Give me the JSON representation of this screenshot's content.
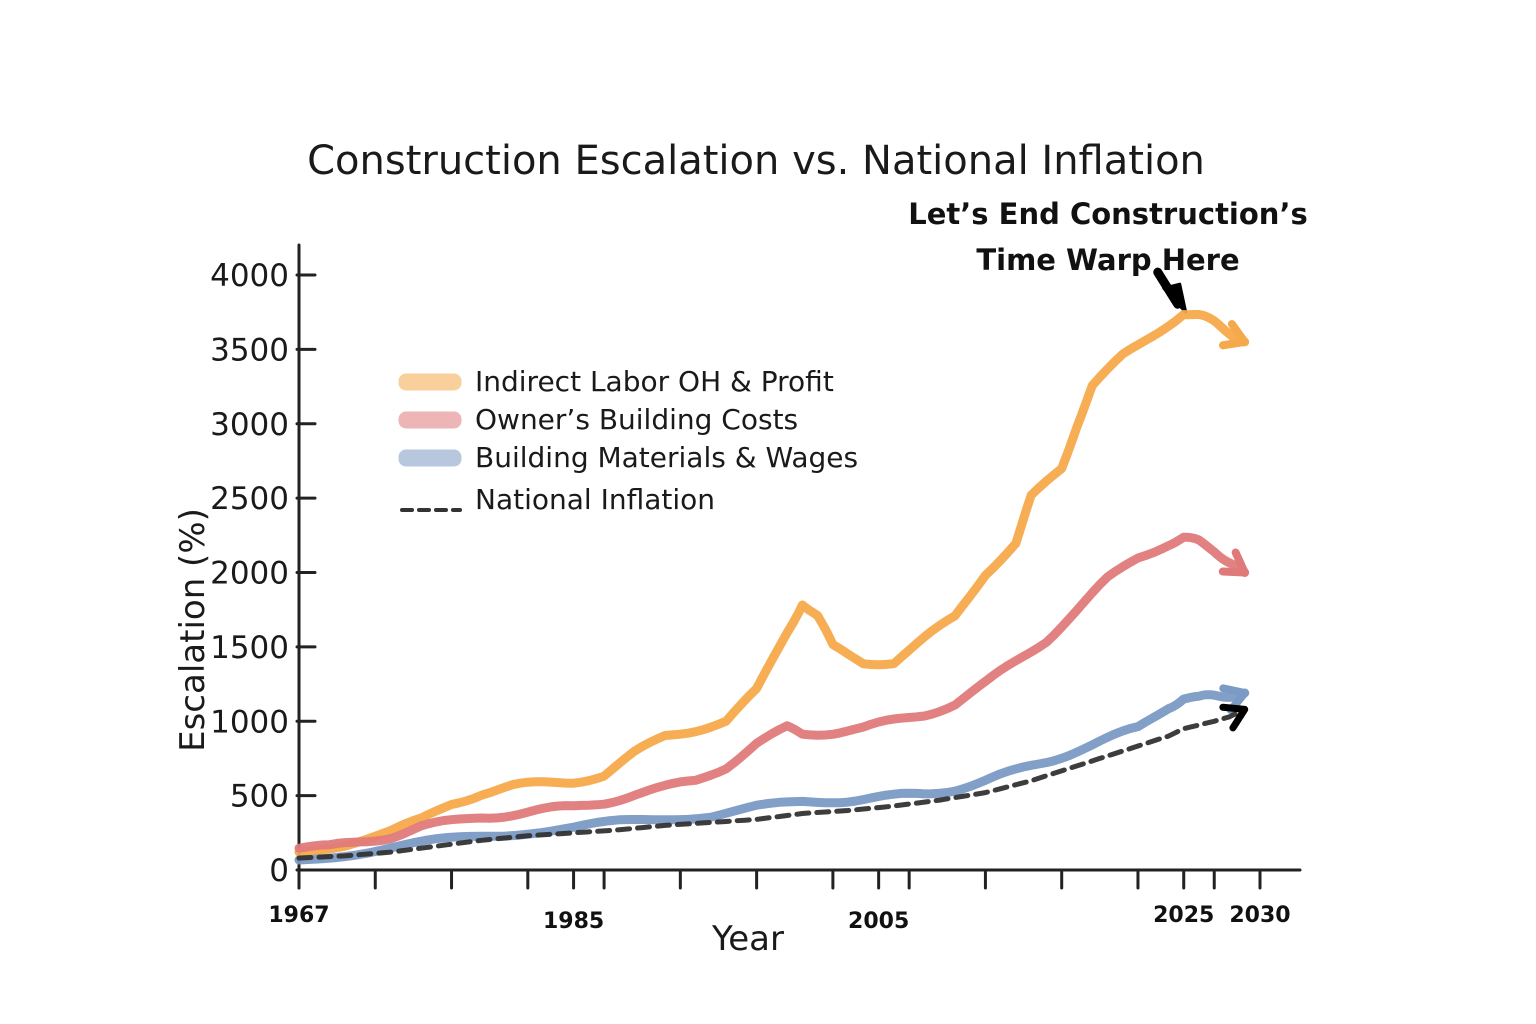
{
  "chart_data": {
    "type": "line",
    "title": "Construction Escalation vs. National Inflation",
    "annotation": "Let’s End Construction’s Time Warp Here",
    "annotation_lines": [
      "Let’s End Construction’s",
      "Time Warp Here"
    ],
    "annotation_x": 2025,
    "annotation_y": 3750,
    "xlabel": "Year",
    "ylabel": "Escalation (%)",
    "xlim": [
      1967,
      2030
    ],
    "ylim": [
      0,
      4000
    ],
    "x_ticks": [
      1967,
      1985,
      2005,
      2025,
      2030
    ],
    "y_ticks": [
      0,
      500,
      1000,
      1500,
      2000,
      2500,
      3000,
      3500,
      4000
    ],
    "grid": false,
    "legend_position": "upper-left",
    "series": [
      {
        "name": "Indirect Labor OH & Profit",
        "color": "#F5A94B",
        "style": "solid",
        "points": [
          [
            1967,
            120
          ],
          [
            1970,
            180
          ],
          [
            1973,
            260
          ],
          [
            1975,
            330
          ],
          [
            1977,
            450
          ],
          [
            1979,
            520
          ],
          [
            1981,
            560
          ],
          [
            1983,
            580
          ],
          [
            1985,
            600
          ],
          [
            1987,
            640
          ],
          [
            1989,
            780
          ],
          [
            1991,
            900
          ],
          [
            1993,
            950
          ],
          [
            1995,
            1000
          ],
          [
            1997,
            1200
          ],
          [
            1999,
            1600
          ],
          [
            2000,
            1800
          ],
          [
            2001,
            1700
          ],
          [
            2002,
            1500
          ],
          [
            2004,
            1400
          ],
          [
            2006,
            1400
          ],
          [
            2008,
            1550
          ],
          [
            2010,
            1700
          ],
          [
            2012,
            2000
          ],
          [
            2014,
            2200
          ],
          [
            2015,
            2500
          ],
          [
            2017,
            2700
          ],
          [
            2018,
            3000
          ],
          [
            2019,
            3250
          ],
          [
            2021,
            3450
          ],
          [
            2023,
            3600
          ],
          [
            2025,
            3750
          ],
          [
            2026,
            3720
          ],
          [
            2027,
            3680
          ],
          [
            2028,
            3620
          ],
          [
            2029,
            3550
          ]
        ]
      },
      {
        "name": "Owner’s Building Costs",
        "color": "#E07A7A",
        "style": "solid",
        "points": [
          [
            1967,
            150
          ],
          [
            1969,
            150
          ],
          [
            1971,
            190
          ],
          [
            1973,
            230
          ],
          [
            1975,
            290
          ],
          [
            1977,
            320
          ],
          [
            1979,
            360
          ],
          [
            1981,
            380
          ],
          [
            1983,
            400
          ],
          [
            1985,
            420
          ],
          [
            1987,
            460
          ],
          [
            1989,
            510
          ],
          [
            1991,
            550
          ],
          [
            1993,
            600
          ],
          [
            1995,
            700
          ],
          [
            1997,
            850
          ],
          [
            1999,
            950
          ],
          [
            2000,
            920
          ],
          [
            2002,
            930
          ],
          [
            2004,
            950
          ],
          [
            2006,
            1000
          ],
          [
            2008,
            1050
          ],
          [
            2010,
            1120
          ],
          [
            2012,
            1250
          ],
          [
            2014,
            1400
          ],
          [
            2016,
            1550
          ],
          [
            2018,
            1750
          ],
          [
            2020,
            1950
          ],
          [
            2022,
            2100
          ],
          [
            2024,
            2200
          ],
          [
            2025,
            2230
          ],
          [
            2026,
            2200
          ],
          [
            2027,
            2150
          ],
          [
            2028,
            2080
          ],
          [
            2029,
            2000
          ]
        ]
      },
      {
        "name": "Building Materials & Wages",
        "color": "#7B9AC4",
        "style": "solid",
        "points": [
          [
            1967,
            60
          ],
          [
            1970,
            110
          ],
          [
            1973,
            150
          ],
          [
            1976,
            190
          ],
          [
            1979,
            230
          ],
          [
            1982,
            260
          ],
          [
            1985,
            280
          ],
          [
            1988,
            320
          ],
          [
            1991,
            350
          ],
          [
            1994,
            370
          ],
          [
            1997,
            420
          ],
          [
            2000,
            450
          ],
          [
            2002,
            470
          ],
          [
            2004,
            480
          ],
          [
            2006,
            490
          ],
          [
            2008,
            510
          ],
          [
            2010,
            550
          ],
          [
            2012,
            600
          ],
          [
            2014,
            660
          ],
          [
            2016,
            730
          ],
          [
            2018,
            810
          ],
          [
            2020,
            880
          ],
          [
            2022,
            950
          ],
          [
            2024,
            1100
          ],
          [
            2025,
            1160
          ],
          [
            2026,
            1150
          ],
          [
            2027,
            1170
          ],
          [
            2028,
            1180
          ],
          [
            2029,
            1190
          ]
        ]
      },
      {
        "name": "National Inflation",
        "color": "#333333",
        "style": "dashed",
        "points": [
          [
            1967,
            80
          ],
          [
            1970,
            95
          ],
          [
            1973,
            120
          ],
          [
            1976,
            160
          ],
          [
            1979,
            200
          ],
          [
            1982,
            230
          ],
          [
            1985,
            250
          ],
          [
            1988,
            270
          ],
          [
            1991,
            300
          ],
          [
            1994,
            320
          ],
          [
            1997,
            340
          ],
          [
            2000,
            380
          ],
          [
            2003,
            400
          ],
          [
            2006,
            430
          ],
          [
            2009,
            470
          ],
          [
            2012,
            520
          ],
          [
            2015,
            600
          ],
          [
            2018,
            700
          ],
          [
            2021,
            800
          ],
          [
            2024,
            900
          ],
          [
            2025,
            950
          ],
          [
            2027,
            1000
          ],
          [
            2028,
            1030
          ],
          [
            2029,
            1080
          ]
        ]
      }
    ]
  }
}
